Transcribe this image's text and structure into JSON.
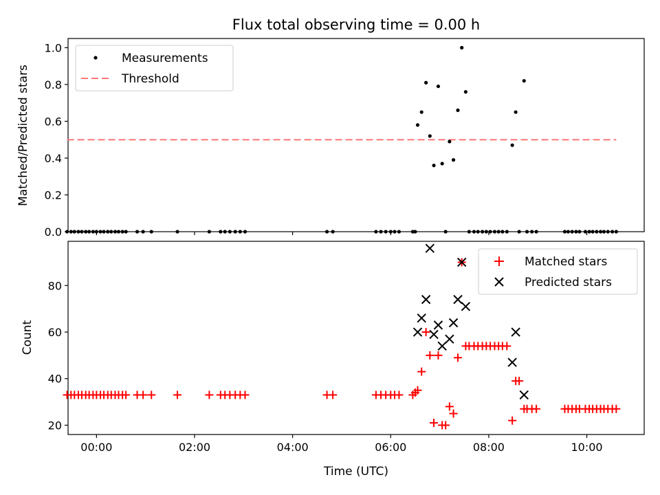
{
  "chart_data": [
    {
      "type": "scatter",
      "title": "Flux total observing time = 0.00 h",
      "xlabel": "",
      "ylabel": "Matched/Predicted stars",
      "xlim": [
        -0.58,
        11.17
      ],
      "ylim": [
        0.0,
        1.05
      ],
      "yticks": [
        "0.0",
        "0.2",
        "0.4",
        "0.6",
        "0.8",
        "1.0"
      ],
      "legend": {
        "position": "top-left",
        "entries": [
          "Measurements",
          "Threshold"
        ]
      },
      "threshold": {
        "name": "Threshold",
        "value": 0.5,
        "x_start": -0.6,
        "x_end": 10.6,
        "color": "#ff7777"
      },
      "series": [
        {
          "name": "Measurements",
          "color": "#000000",
          "x": [
            -0.6,
            -0.52,
            -0.45,
            -0.37,
            -0.3,
            -0.22,
            -0.15,
            -0.07,
            0.0,
            0.08,
            0.15,
            0.23,
            0.3,
            0.38,
            0.45,
            0.53,
            0.6,
            0.83,
            0.95,
            1.12,
            1.65,
            2.3,
            2.53,
            2.62,
            2.72,
            2.83,
            2.93,
            3.03,
            4.7,
            4.82,
            5.7,
            5.8,
            5.9,
            6.0,
            6.08,
            6.17,
            6.45,
            6.5,
            6.55,
            6.63,
            6.72,
            6.8,
            6.88,
            6.97,
            7.05,
            7.12,
            7.2,
            7.28,
            7.37,
            7.45,
            7.53,
            7.6,
            7.7,
            7.78,
            7.87,
            7.95,
            8.03,
            8.12,
            8.2,
            8.28,
            8.37,
            8.48,
            8.55,
            8.62,
            8.72,
            8.78,
            8.88,
            8.97,
            9.55,
            9.62,
            9.7,
            9.78,
            9.85,
            9.97,
            10.05,
            10.12,
            10.2,
            10.28,
            10.35,
            10.43,
            10.52,
            10.6
          ],
          "y": [
            0,
            0,
            0,
            0,
            0,
            0,
            0,
            0,
            0,
            0,
            0,
            0,
            0,
            0,
            0,
            0,
            0,
            0,
            0,
            0,
            0,
            0,
            0,
            0,
            0,
            0,
            0,
            0,
            0,
            0,
            0,
            0,
            0,
            0,
            0,
            0,
            0,
            0,
            0.58,
            0.65,
            0.81,
            0.52,
            0.36,
            0.79,
            0.37,
            0,
            0.49,
            0.39,
            0.66,
            1.0,
            0.76,
            0,
            0,
            0,
            0,
            0,
            0,
            0,
            0,
            0,
            0,
            0.47,
            0.65,
            0,
            0.82,
            0,
            0,
            0,
            0,
            0,
            0,
            0,
            0,
            0,
            0,
            0,
            0,
            0,
            0,
            0,
            0,
            0
          ]
        }
      ]
    },
    {
      "type": "scatter",
      "title": "",
      "xlabel": "Time (UTC)",
      "ylabel": "Count",
      "xlim": [
        -0.58,
        11.17
      ],
      "ylim": [
        16,
        99
      ],
      "yticks": [
        "20",
        "40",
        "60",
        "80"
      ],
      "xticks": [
        "00:00",
        "02:00",
        "04:00",
        "06:00",
        "08:00",
        "10:00"
      ],
      "legend": {
        "position": "top-right",
        "entries": [
          "Matched stars",
          "Predicted stars"
        ]
      },
      "series": [
        {
          "name": "Matched stars",
          "color": "#ff0000",
          "marker": "+",
          "x": [
            -0.6,
            -0.52,
            -0.45,
            -0.37,
            -0.3,
            -0.22,
            -0.15,
            -0.07,
            0.0,
            0.08,
            0.15,
            0.23,
            0.3,
            0.38,
            0.45,
            0.53,
            0.6,
            0.83,
            0.95,
            1.12,
            1.65,
            2.3,
            2.53,
            2.62,
            2.72,
            2.83,
            2.93,
            3.03,
            4.7,
            4.82,
            5.7,
            5.8,
            5.9,
            6.0,
            6.08,
            6.17,
            6.45,
            6.5,
            6.55,
            6.63,
            6.72,
            6.8,
            6.88,
            6.97,
            7.05,
            7.12,
            7.2,
            7.28,
            7.37,
            7.45,
            7.53,
            7.6,
            7.7,
            7.78,
            7.87,
            7.95,
            8.03,
            8.12,
            8.2,
            8.28,
            8.37,
            8.48,
            8.55,
            8.62,
            8.72,
            8.78,
            8.88,
            8.97,
            9.55,
            9.62,
            9.7,
            9.78,
            9.85,
            9.97,
            10.05,
            10.12,
            10.2,
            10.28,
            10.35,
            10.43,
            10.52,
            10.6
          ],
          "y": [
            33,
            33,
            33,
            33,
            33,
            33,
            33,
            33,
            33,
            33,
            33,
            33,
            33,
            33,
            33,
            33,
            33,
            33,
            33,
            33,
            33,
            33,
            33,
            33,
            33,
            33,
            33,
            33,
            33,
            33,
            33,
            33,
            33,
            33,
            33,
            33,
            33,
            34,
            35,
            43,
            60,
            50,
            21,
            50,
            20,
            20,
            28,
            25,
            49,
            90,
            54,
            54,
            54,
            54,
            54,
            54,
            54,
            54,
            54,
            54,
            54,
            22,
            39,
            39,
            27,
            27,
            27,
            27,
            27,
            27,
            27,
            27,
            27,
            27,
            27,
            27,
            27,
            27,
            27,
            27,
            27,
            27
          ]
        },
        {
          "name": "Predicted stars",
          "color": "#000000",
          "marker": "x",
          "x": [
            6.55,
            6.63,
            6.72,
            6.8,
            6.88,
            6.97,
            7.05,
            7.2,
            7.28,
            7.37,
            7.45,
            7.53,
            8.48,
            8.55,
            8.72
          ],
          "y": [
            60,
            66,
            74,
            96,
            59,
            63,
            54,
            57,
            64,
            74,
            90,
            71,
            47,
            60,
            33
          ]
        }
      ]
    }
  ]
}
